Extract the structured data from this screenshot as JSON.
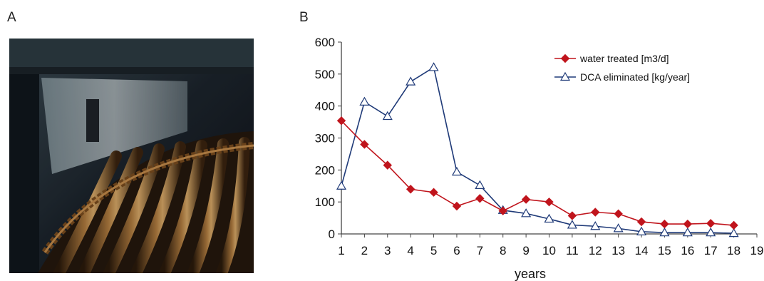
{
  "panels": {
    "a_label": "A",
    "b_label": "B"
  },
  "photo": {
    "subject": "filter-tube-bundle-photo"
  },
  "colors": {
    "water": "#c0141c",
    "dca": "#1f3a78",
    "axis": "#444444"
  },
  "chart_data": {
    "type": "line",
    "xlabel": "years",
    "ylabel": "",
    "xlim": [
      1,
      19
    ],
    "ylim": [
      0,
      600
    ],
    "x_ticks": [
      1,
      2,
      3,
      4,
      5,
      6,
      7,
      8,
      9,
      10,
      11,
      12,
      13,
      14,
      15,
      16,
      17,
      18,
      19
    ],
    "y_ticks": [
      0,
      100,
      200,
      300,
      400,
      500,
      600
    ],
    "legend_position": "top-right",
    "grid": false,
    "x": [
      1,
      2,
      3,
      4,
      5,
      6,
      7,
      8,
      9,
      10,
      11,
      12,
      13,
      14,
      15,
      16,
      17,
      18
    ],
    "series": [
      {
        "name": "water treated  [m3/d]",
        "marker": "diamond",
        "color": "#c0141c",
        "values": [
          354,
          280,
          215,
          140,
          130,
          87,
          111,
          72,
          108,
          100,
          57,
          68,
          63,
          38,
          31,
          31,
          33,
          27
        ]
      },
      {
        "name": "DCA eliminated [kg/year]",
        "marker": "triangle",
        "color": "#1f3a78",
        "values": [
          150,
          413,
          368,
          476,
          521,
          194,
          152,
          74,
          64,
          47,
          28,
          24,
          17,
          7,
          4,
          4,
          4,
          2
        ]
      }
    ]
  }
}
